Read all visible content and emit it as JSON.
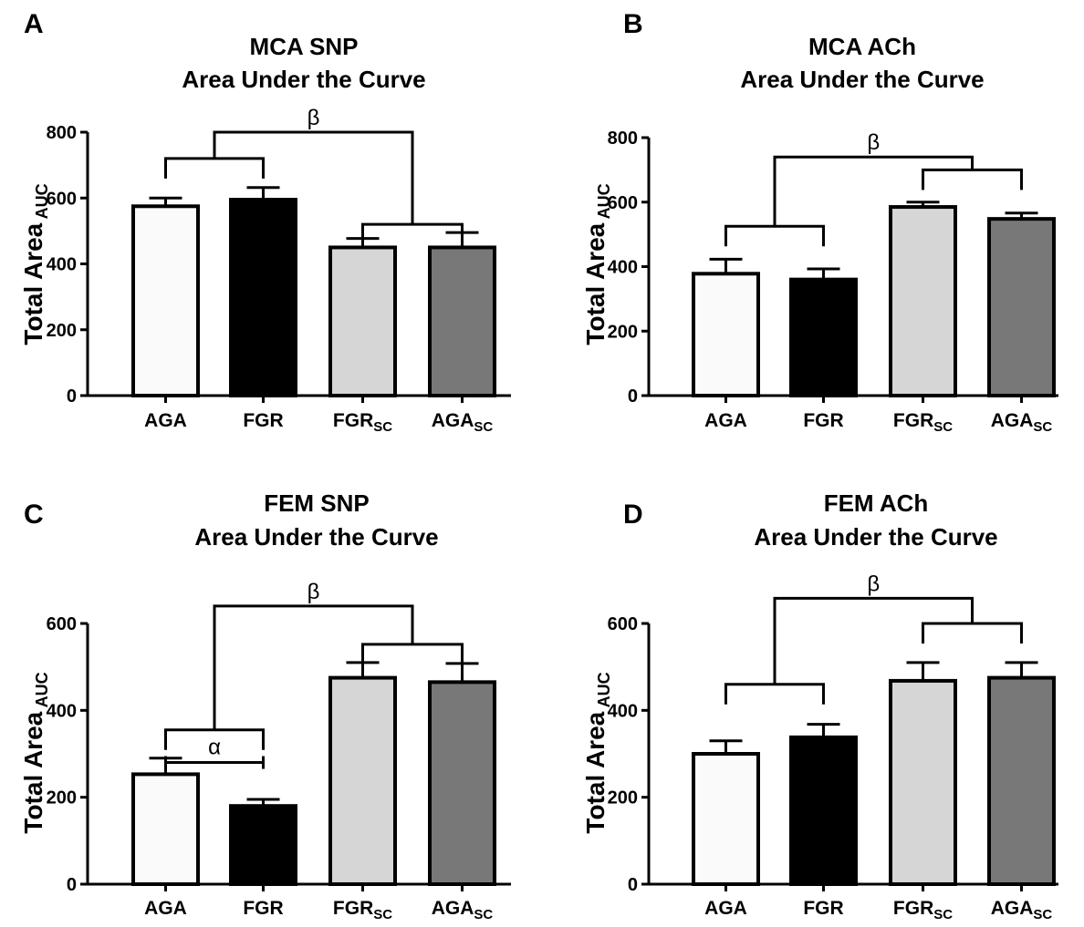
{
  "chart_data": [
    {
      "panel_label": "A",
      "type": "bar",
      "title_lines": [
        "MCA SNP",
        "Area Under the Curve"
      ],
      "ylabel": "Total Area",
      "ylabel_sub": "AUC",
      "ylim": [
        0,
        800
      ],
      "yticks": [
        0,
        200,
        400,
        600,
        800
      ],
      "categories": [
        {
          "base": "AGA",
          "sub": ""
        },
        {
          "base": "FGR",
          "sub": ""
        },
        {
          "base": "FGR",
          "sub": "SC"
        },
        {
          "base": "AGA",
          "sub": "SC"
        }
      ],
      "values": [
        575,
        595,
        450,
        450
      ],
      "errors": [
        25,
        37,
        27,
        45
      ],
      "colors": [
        "#fafafa",
        "#000000",
        "#d6d6d6",
        "#787878"
      ],
      "annotations": [
        {
          "type": "bracket",
          "from": 0,
          "to": 1,
          "y": 720
        },
        {
          "type": "bracket",
          "from": 2,
          "to": 3,
          "y": 520
        },
        {
          "type": "group_bracket",
          "from_x": 0.5,
          "to_x": 2.5,
          "y": 800,
          "left_y": 720,
          "right_y": 520,
          "label": "β"
        }
      ]
    },
    {
      "panel_label": "B",
      "type": "bar",
      "title_lines": [
        "MCA ACh",
        "Area Under the Curve"
      ],
      "ylabel": "Total Area",
      "ylabel_sub": "AUC",
      "ylim": [
        0,
        800
      ],
      "yticks": [
        0,
        200,
        400,
        600,
        800
      ],
      "categories": [
        {
          "base": "AGA",
          "sub": ""
        },
        {
          "base": "FGR",
          "sub": ""
        },
        {
          "base": "FGR",
          "sub": "SC"
        },
        {
          "base": "AGA",
          "sub": "SC"
        }
      ],
      "values": [
        378,
        360,
        585,
        548
      ],
      "errors": [
        45,
        33,
        15,
        18
      ],
      "colors": [
        "#fafafa",
        "#000000",
        "#d6d6d6",
        "#787878"
      ],
      "annotations": [
        {
          "type": "bracket",
          "from": 0,
          "to": 1,
          "y": 525
        },
        {
          "type": "bracket",
          "from": 2,
          "to": 3,
          "y": 700
        },
        {
          "type": "group_bracket",
          "from_x": 0.5,
          "to_x": 2.5,
          "y": 740,
          "left_y": 525,
          "right_y": 700,
          "label": "β"
        }
      ]
    },
    {
      "panel_label": "C",
      "type": "bar",
      "title_lines": [
        "FEM SNP",
        "Area Under the Curve"
      ],
      "ylabel": "Total Area",
      "ylabel_sub": "AUC",
      "ylim": [
        0,
        600
      ],
      "yticks": [
        0,
        200,
        400,
        600
      ],
      "categories": [
        {
          "base": "AGA",
          "sub": ""
        },
        {
          "base": "FGR",
          "sub": ""
        },
        {
          "base": "FGR",
          "sub": "SC"
        },
        {
          "base": "AGA",
          "sub": "SC"
        }
      ],
      "values": [
        253,
        180,
        475,
        465
      ],
      "errors": [
        37,
        15,
        35,
        43
      ],
      "colors": [
        "#fafafa",
        "#000000",
        "#d6d6d6",
        "#787878"
      ],
      "annotations": [
        {
          "type": "bracket",
          "from": 0,
          "to": 1,
          "y": 355
        },
        {
          "type": "bracket",
          "from": 2,
          "to": 3,
          "y": 552
        },
        {
          "type": "line_label",
          "from": 0,
          "to": 1,
          "y": 280,
          "label": "α"
        },
        {
          "type": "group_bracket",
          "from_x": 0.5,
          "to_x": 2.5,
          "y": 640,
          "left_y": 355,
          "right_y": 552,
          "label": "β"
        }
      ]
    },
    {
      "panel_label": "D",
      "type": "bar",
      "title_lines": [
        "FEM ACh",
        "Area Under the Curve"
      ],
      "ylabel": "Total Area",
      "ylabel_sub": "AUC",
      "ylim": [
        0,
        600
      ],
      "yticks": [
        0,
        200,
        400,
        600
      ],
      "categories": [
        {
          "base": "AGA",
          "sub": ""
        },
        {
          "base": "FGR",
          "sub": ""
        },
        {
          "base": "FGR",
          "sub": "SC"
        },
        {
          "base": "AGA",
          "sub": "SC"
        }
      ],
      "values": [
        300,
        338,
        468,
        475
      ],
      "errors": [
        30,
        30,
        42,
        35
      ],
      "colors": [
        "#fafafa",
        "#000000",
        "#d6d6d6",
        "#787878"
      ],
      "annotations": [
        {
          "type": "bracket",
          "from": 0,
          "to": 1,
          "y": 460
        },
        {
          "type": "bracket",
          "from": 2,
          "to": 3,
          "y": 600
        },
        {
          "type": "group_bracket",
          "from_x": 0.5,
          "to_x": 2.5,
          "y": 658,
          "left_y": 460,
          "right_y": 600,
          "label": "β"
        }
      ]
    }
  ]
}
